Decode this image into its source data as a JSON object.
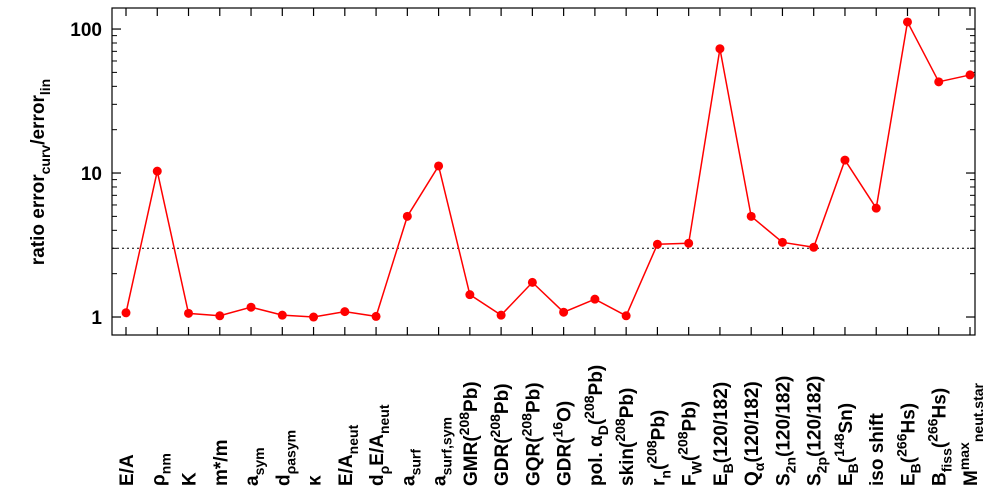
{
  "chart_data": {
    "type": "line",
    "yscale": "log",
    "ylim": [
      0.75,
      140
    ],
    "yticks": [
      1,
      10,
      100
    ],
    "ytick_labels": [
      "1",
      "10",
      "100"
    ],
    "ylabel": "ratio error_curv/error_lin",
    "reference_line": 3,
    "color": "#ff0000",
    "categories": [
      "E/A",
      "ρ_nm",
      "K",
      "m*/m",
      "a_sym",
      "d_ρa_sym",
      "κ",
      "E/A_neut",
      "d_ρE/A_neut",
      "a_surf",
      "a_surf,sym",
      "GMR(208Pb)",
      "GDR(208Pb)",
      "GQR(208Pb)",
      "GDR(16O)",
      "pol. α_D(208Pb)",
      "skin(208Pb)",
      "r_n(208Pb)",
      "F_W(208Pb)",
      "E_B(120/182)",
      "Q_α(120/182)",
      "S_2n(120/182)",
      "S_2p(120/182)",
      "E_B(148Sn)",
      "iso shift",
      "E_B(266Hs)",
      "B_fiss(266Hs)",
      "M^max_neut.star"
    ],
    "values": [
      1.07,
      10.3,
      1.06,
      1.02,
      1.17,
      1.03,
      1.0,
      1.09,
      1.01,
      5.0,
      11.2,
      1.43,
      1.03,
      1.74,
      1.08,
      1.33,
      1.02,
      3.2,
      3.25,
      73,
      5.0,
      3.3,
      3.05,
      12.3,
      5.7,
      112,
      43,
      48
    ],
    "grid": false,
    "legend": "none"
  }
}
